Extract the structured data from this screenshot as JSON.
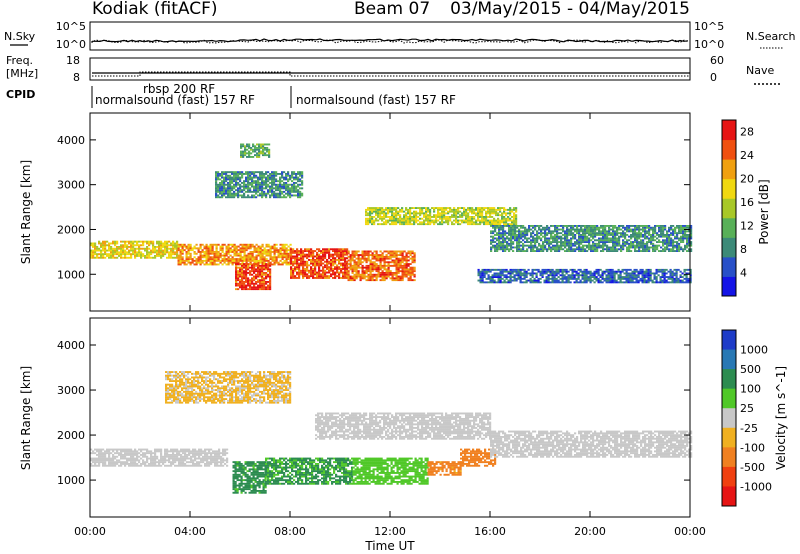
{
  "header": {
    "station": "Kodiak (fitACF)",
    "beam": "Beam 07",
    "dates": "03/May/2015 - 04/May/2015"
  },
  "noise_panel": {
    "left_label": "N.Sky",
    "right_label": "N.Search",
    "left_ticks": [
      "10^5",
      "10^0"
    ],
    "right_ticks": [
      "10^5",
      "10^0"
    ]
  },
  "freq_panel": {
    "left_label_line1": "Freq.",
    "left_label_line2": "[MHz]",
    "right_label": "Nave",
    "left_ticks": [
      "18",
      "8"
    ],
    "right_ticks": [
      "60",
      "0"
    ]
  },
  "cpid_panel": {
    "label": "CPID",
    "programs": [
      {
        "name": "normalsound (fast) 157 RF",
        "start_hour": 0,
        "end_hour": 8
      },
      {
        "name": "rbsp 200 RF",
        "start_hour": 2,
        "end_hour": 8
      },
      {
        "name": "normalsound (fast) 157 RF",
        "start_hour": 8,
        "end_hour": 24
      }
    ]
  },
  "time_axis": {
    "label": "Time UT",
    "ticks": [
      "00:00",
      "04:00",
      "08:00",
      "12:00",
      "16:00",
      "20:00",
      "00:00"
    ]
  },
  "chart_data": [
    {
      "type": "heatmap",
      "title": "",
      "xlabel": "Time UT",
      "ylabel": "Slant Range [km]",
      "xlim": [
        0,
        24
      ],
      "ylim": [
        180,
        4600
      ],
      "yticks": [
        1000,
        2000,
        3000,
        4000
      ],
      "colorbar": {
        "label": "Power [dB]",
        "ticks": [
          4,
          8,
          12,
          16,
          20,
          24,
          28
        ],
        "range": [
          0,
          30
        ],
        "colors": [
          "#1414e6",
          "#2850c8",
          "#3c8a78",
          "#58b058",
          "#a8c828",
          "#f0d810",
          "#f0a010",
          "#f05010",
          "#e61414"
        ]
      },
      "echo_regions": [
        {
          "t_start": 0.0,
          "t_end": 3.5,
          "r_low": 1350,
          "r_high": 1750,
          "value": 18
        },
        {
          "t_start": 3.5,
          "t_end": 8.0,
          "r_low": 1200,
          "r_high": 1650,
          "value": 22
        },
        {
          "t_start": 5.8,
          "t_end": 7.2,
          "r_low": 650,
          "r_high": 1250,
          "value": 26
        },
        {
          "t_start": 8.0,
          "t_end": 10.3,
          "r_low": 900,
          "r_high": 1550,
          "value": 26
        },
        {
          "t_start": 10.3,
          "t_end": 13.0,
          "r_low": 850,
          "r_high": 1500,
          "value": 24
        },
        {
          "t_start": 11.0,
          "t_end": 17.0,
          "r_low": 2100,
          "r_high": 2500,
          "value": 16
        },
        {
          "t_start": 16.0,
          "t_end": 24.0,
          "r_low": 1500,
          "r_high": 2100,
          "value": 9
        },
        {
          "t_start": 15.5,
          "t_end": 24.0,
          "r_low": 800,
          "r_high": 1100,
          "value": 6
        },
        {
          "t_start": 5.0,
          "t_end": 8.5,
          "r_low": 2700,
          "r_high": 3300,
          "value": 9
        },
        {
          "t_start": 6.0,
          "t_end": 7.2,
          "r_low": 3600,
          "r_high": 3900,
          "value": 11
        }
      ]
    },
    {
      "type": "heatmap",
      "title": "",
      "xlabel": "Time UT",
      "ylabel": "Slant Range [km]",
      "xlim": [
        0,
        24
      ],
      "ylim": [
        180,
        4600
      ],
      "yticks": [
        1000,
        2000,
        3000,
        4000
      ],
      "colorbar": {
        "label": "Velocity [m s^-1]",
        "ticks": [
          "1000",
          "500",
          "100",
          "25",
          "-25",
          "-100",
          "-500",
          "-1000"
        ],
        "colors": [
          "#1e3cc8",
          "#2878b4",
          "#2c8c50",
          "#50c828",
          "#c8c8c8",
          "#f0b020",
          "#f08020",
          "#f04010",
          "#e61414"
        ]
      },
      "echo_regions": [
        {
          "t_start": 0.0,
          "t_end": 5.5,
          "r_low": 1300,
          "r_high": 1700,
          "value": 0
        },
        {
          "t_start": 5.7,
          "t_end": 7.0,
          "r_low": 700,
          "r_high": 1400,
          "value": 150
        },
        {
          "t_start": 7.0,
          "t_end": 10.5,
          "r_low": 900,
          "r_high": 1500,
          "value": 120
        },
        {
          "t_start": 10.5,
          "t_end": 13.5,
          "r_low": 900,
          "r_high": 1500,
          "value": 60
        },
        {
          "t_start": 13.5,
          "t_end": 14.8,
          "r_low": 1100,
          "r_high": 1400,
          "value": -150
        },
        {
          "t_start": 14.8,
          "t_end": 16.2,
          "r_low": 1300,
          "r_high": 1700,
          "value": -300
        },
        {
          "t_start": 9.0,
          "t_end": 16.0,
          "r_low": 1900,
          "r_high": 2500,
          "value": 0
        },
        {
          "t_start": 16.0,
          "t_end": 24.0,
          "r_low": 1500,
          "r_high": 2100,
          "value": 0
        },
        {
          "t_start": 3.0,
          "t_end": 8.0,
          "r_low": 2700,
          "r_high": 3400,
          "value": -30
        }
      ]
    }
  ]
}
